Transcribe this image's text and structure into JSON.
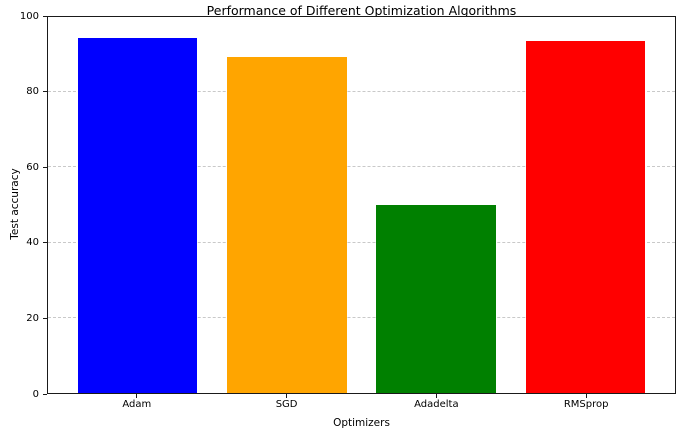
{
  "chart_data": {
    "type": "bar",
    "title": "Performance of Different Optimization Algorithms",
    "xlabel": "Optimizers",
    "ylabel": "Test accuracy",
    "categories": [
      "Adam",
      "SGD",
      "Adadelta",
      "RMSprop"
    ],
    "values": [
      94.3,
      89.4,
      50.1,
      93.7
    ],
    "bar_colors": [
      "#0000ff",
      "#ffa500",
      "#008000",
      "#ff0000"
    ],
    "ylim": [
      0,
      100
    ],
    "yticks": [
      0,
      20,
      40,
      60,
      80,
      100
    ],
    "legend": "none",
    "grid": "horizontal-dashed",
    "grid_color": "#c9c9c9",
    "background_color": "#ffffff"
  }
}
